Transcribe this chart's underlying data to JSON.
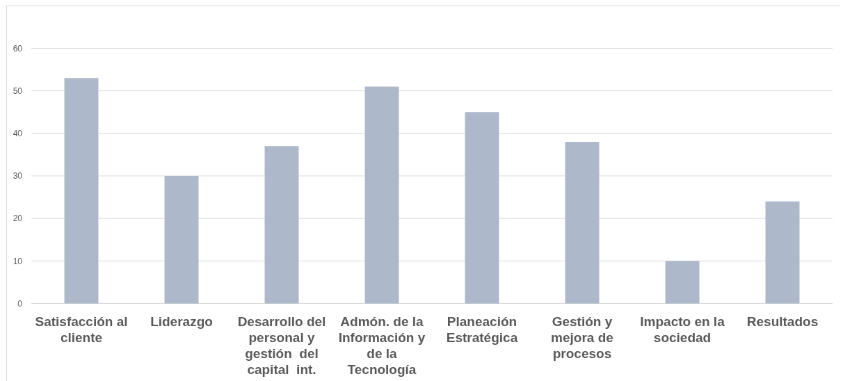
{
  "chart_data": {
    "type": "bar",
    "categories": [
      "Satisfacción al cliente",
      "Liderazgo",
      "Desarrollo del personal y gestión  del capital  int.",
      "Admón. de la Información y de la Tecnología",
      "Planeación Estratégica",
      "Gestión y mejora de procesos",
      "Impacto en la sociedad",
      "Resultados"
    ],
    "values": [
      53,
      30,
      37,
      51,
      45,
      38,
      10,
      24
    ],
    "color": "#adb9ca",
    "ylim": [
      0,
      60
    ],
    "yticks": [
      0,
      10,
      20,
      30,
      40,
      50,
      60
    ],
    "grid": "y"
  }
}
